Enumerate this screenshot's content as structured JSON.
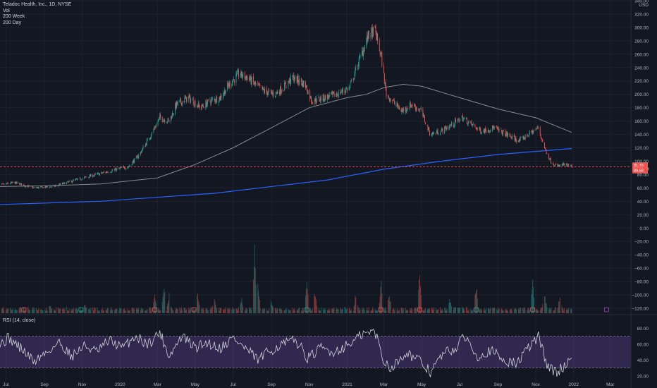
{
  "legend": {
    "title": "Teladoc Health, Inc., 1D, NYSE",
    "vol": "Vol",
    "ma1": "200 Week",
    "ma2": "200 Day"
  },
  "rsi_label": "RSI (14, close)",
  "currency": "USD",
  "colors": {
    "background": "#131722",
    "grid": "#1e222d",
    "up": "#26a69a",
    "down": "#ef5350",
    "ma200day": "#868993",
    "ma200week": "#2962ff",
    "rsi_line": "#d1d4dc",
    "rsi_band": "#7e57c2",
    "price_line": "#ef5350"
  },
  "price_labels": {
    "last": "91.76",
    "countdown": "05:49:49",
    "ma": "89.58"
  },
  "chart_data": [
    {
      "type": "candlestick",
      "title": "Teladoc Health, Inc., 1D, NYSE",
      "ylabel": "USD",
      "x_tick_labels": [
        "Jul",
        "Sep",
        "Nov",
        "2020",
        "Mar",
        "May",
        "Jul",
        "Sep",
        "Nov",
        "2021",
        "Mar",
        "May",
        "Jul",
        "Sep",
        "Nov",
        "2022",
        "Mar"
      ],
      "y_ticks": [
        340,
        320,
        300,
        280,
        260,
        240,
        220,
        200,
        180,
        160,
        140,
        120,
        100,
        80,
        60,
        40,
        20,
        0,
        -20,
        -40,
        -60,
        -80,
        -100,
        -120
      ],
      "y_tick_labels": [
        "340.00",
        "320.00",
        "300.00",
        "280.00",
        "260.00",
        "240.00",
        "220.00",
        "200.00",
        "180.00",
        "160.00",
        "140.00",
        "120.00",
        "100.00",
        "80.00",
        "60.00",
        "40.00",
        "20.00",
        "0.00",
        "−20.00",
        "−40.00",
        "−60.00",
        "−80.00",
        "−100.00",
        "−120.00"
      ],
      "ylim": [
        -120,
        340
      ],
      "last_price": 91.76,
      "close_path": [
        [
          "2019-06-15",
          63
        ],
        [
          "2019-07-15",
          68
        ],
        [
          "2019-08-15",
          60
        ],
        [
          "2019-09-15",
          62
        ],
        [
          "2019-10-15",
          70
        ],
        [
          "2019-11-15",
          78
        ],
        [
          "2019-12-15",
          85
        ],
        [
          "2020-01-15",
          92
        ],
        [
          "2020-02-01",
          110
        ],
        [
          "2020-02-20",
          140
        ],
        [
          "2020-03-05",
          165
        ],
        [
          "2020-03-20",
          160
        ],
        [
          "2020-04-01",
          185
        ],
        [
          "2020-04-20",
          195
        ],
        [
          "2020-05-10",
          180
        ],
        [
          "2020-05-25",
          190
        ],
        [
          "2020-06-10",
          195
        ],
        [
          "2020-06-25",
          215
        ],
        [
          "2020-07-10",
          230
        ],
        [
          "2020-07-25",
          225
        ],
        [
          "2020-08-05",
          215
        ],
        [
          "2020-08-20",
          205
        ],
        [
          "2020-09-05",
          200
        ],
        [
          "2020-09-20",
          210
        ],
        [
          "2020-10-05",
          225
        ],
        [
          "2020-10-25",
          215
        ],
        [
          "2020-11-05",
          190
        ],
        [
          "2020-11-25",
          195
        ],
        [
          "2020-12-15",
          200
        ],
        [
          "2021-01-05",
          210
        ],
        [
          "2021-01-20",
          250
        ],
        [
          "2021-02-05",
          290
        ],
        [
          "2021-02-15",
          295
        ],
        [
          "2021-02-25",
          255
        ],
        [
          "2021-03-05",
          200
        ],
        [
          "2021-03-15",
          190
        ],
        [
          "2021-03-30",
          175
        ],
        [
          "2021-04-15",
          185
        ],
        [
          "2021-04-30",
          175
        ],
        [
          "2021-05-15",
          140
        ],
        [
          "2021-06-01",
          145
        ],
        [
          "2021-06-20",
          155
        ],
        [
          "2021-07-05",
          165
        ],
        [
          "2021-07-20",
          155
        ],
        [
          "2021-08-05",
          145
        ],
        [
          "2021-08-25",
          150
        ],
        [
          "2021-09-15",
          140
        ],
        [
          "2021-10-05",
          130
        ],
        [
          "2021-10-20",
          140
        ],
        [
          "2021-11-05",
          150
        ],
        [
          "2021-11-15",
          120
        ],
        [
          "2021-11-25",
          100
        ],
        [
          "2021-12-05",
          92
        ],
        [
          "2021-12-15",
          95
        ],
        [
          "2021-12-29",
          91.76
        ]
      ],
      "ma_200_day": [
        [
          "2019-06-15",
          62
        ],
        [
          "2019-09-01",
          63
        ],
        [
          "2019-12-01",
          66
        ],
        [
          "2020-03-01",
          75
        ],
        [
          "2020-05-01",
          95
        ],
        [
          "2020-07-01",
          120
        ],
        [
          "2020-09-01",
          150
        ],
        [
          "2020-11-01",
          180
        ],
        [
          "2021-01-01",
          195
        ],
        [
          "2021-02-01",
          200
        ],
        [
          "2021-03-01",
          210
        ],
        [
          "2021-04-01",
          215
        ],
        [
          "2021-05-01",
          212
        ],
        [
          "2021-07-01",
          195
        ],
        [
          "2021-09-01",
          178
        ],
        [
          "2021-11-01",
          165
        ],
        [
          "2021-12-29",
          143
        ]
      ],
      "ma_200_week": [
        [
          "2019-06-15",
          35
        ],
        [
          "2019-12-01",
          40
        ],
        [
          "2020-06-01",
          52
        ],
        [
          "2020-12-01",
          72
        ],
        [
          "2021-03-01",
          88
        ],
        [
          "2021-06-01",
          100
        ],
        [
          "2021-09-01",
          110
        ],
        [
          "2021-12-29",
          119
        ]
      ]
    },
    {
      "type": "bar",
      "title": "Vol",
      "note": "daily volume histogram, relative heights (0-1)",
      "spikes": [
        [
          "2019-06-20",
          0.1
        ],
        [
          "2019-09-10",
          0.12
        ],
        [
          "2019-11-05",
          0.14
        ],
        [
          "2020-01-20",
          0.1
        ],
        [
          "2020-02-26",
          0.25
        ],
        [
          "2020-03-12",
          0.4
        ],
        [
          "2020-03-20",
          0.3
        ],
        [
          "2020-05-05",
          0.3
        ],
        [
          "2020-06-01",
          0.25
        ],
        [
          "2020-07-15",
          0.2
        ],
        [
          "2020-08-05",
          1.0
        ],
        [
          "2020-08-10",
          0.55
        ],
        [
          "2020-09-01",
          0.2
        ],
        [
          "2020-10-28",
          0.45
        ],
        [
          "2020-11-10",
          0.35
        ],
        [
          "2021-01-15",
          0.3
        ],
        [
          "2021-02-25",
          0.45
        ],
        [
          "2021-03-10",
          0.3
        ],
        [
          "2021-04-28",
          0.55
        ],
        [
          "2021-06-15",
          0.25
        ],
        [
          "2021-07-28",
          0.4
        ],
        [
          "2021-10-27",
          0.45
        ],
        [
          "2021-11-15",
          0.35
        ],
        [
          "2021-12-10",
          0.3
        ]
      ]
    },
    {
      "type": "line",
      "title": "RSI (14, close)",
      "y_ticks": [
        80,
        60,
        40,
        20
      ],
      "y_tick_labels": [
        "80.00",
        "60.00",
        "40.00",
        "20.00"
      ],
      "ylim": [
        10,
        90
      ],
      "band": [
        30,
        70
      ],
      "values": [
        [
          "2019-06-15",
          55
        ],
        [
          "2019-07-05",
          68
        ],
        [
          "2019-07-25",
          55
        ],
        [
          "2019-08-15",
          38
        ],
        [
          "2019-09-05",
          50
        ],
        [
          "2019-09-25",
          62
        ],
        [
          "2019-10-15",
          45
        ],
        [
          "2019-11-05",
          58
        ],
        [
          "2019-11-25",
          50
        ],
        [
          "2019-12-15",
          65
        ],
        [
          "2020-01-05",
          55
        ],
        [
          "2020-01-25",
          70
        ],
        [
          "2020-02-15",
          60
        ],
        [
          "2020-03-05",
          75
        ],
        [
          "2020-03-20",
          45
        ],
        [
          "2020-04-10",
          70
        ],
        [
          "2020-05-01",
          55
        ],
        [
          "2020-05-20",
          62
        ],
        [
          "2020-06-10",
          55
        ],
        [
          "2020-07-01",
          68
        ],
        [
          "2020-07-20",
          55
        ],
        [
          "2020-08-10",
          40
        ],
        [
          "2020-08-30",
          52
        ],
        [
          "2020-09-20",
          60
        ],
        [
          "2020-10-10",
          65
        ],
        [
          "2020-10-30",
          42
        ],
        [
          "2020-11-20",
          55
        ],
        [
          "2020-12-10",
          50
        ],
        [
          "2021-01-05",
          60
        ],
        [
          "2021-01-25",
          72
        ],
        [
          "2021-02-15",
          76
        ],
        [
          "2021-03-01",
          38
        ],
        [
          "2021-03-15",
          30
        ],
        [
          "2021-04-05",
          50
        ],
        [
          "2021-04-25",
          40
        ],
        [
          "2021-05-15",
          25
        ],
        [
          "2021-06-05",
          48
        ],
        [
          "2021-06-25",
          55
        ],
        [
          "2021-07-10",
          70
        ],
        [
          "2021-07-30",
          45
        ],
        [
          "2021-08-20",
          52
        ],
        [
          "2021-09-10",
          40
        ],
        [
          "2021-09-30",
          35
        ],
        [
          "2021-10-20",
          55
        ],
        [
          "2021-11-05",
          70
        ],
        [
          "2021-11-20",
          32
        ],
        [
          "2021-12-05",
          24
        ],
        [
          "2021-12-20",
          35
        ],
        [
          "2021-12-29",
          42
        ]
      ]
    }
  ]
}
